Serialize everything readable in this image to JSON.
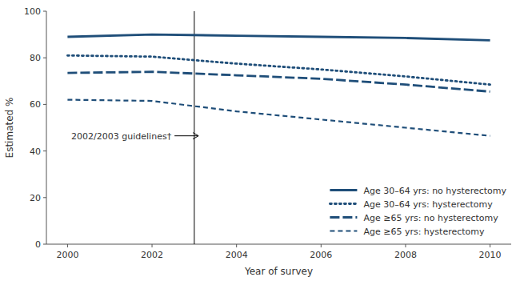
{
  "chart_data": {
    "type": "line",
    "x": [
      2000,
      2002,
      2004,
      2006,
      2008,
      2010
    ],
    "series": [
      {
        "name": "Age 30–64 yrs: no hysterectomy",
        "color": "#1F4E79",
        "line_style": "solid",
        "values": [
          89.0,
          90.0,
          89.5,
          89.0,
          88.5,
          87.5
        ]
      },
      {
        "name": "Age 30–64 yrs: hysterectomy",
        "color": "#1F4E79",
        "line_style": "dotted",
        "values": [
          81.0,
          80.5,
          77.5,
          75.0,
          72.0,
          68.5
        ]
      },
      {
        "name": "Age ≥65 yrs: no hysterectomy",
        "color": "#1F4E79",
        "line_style": "dashed",
        "values": [
          73.5,
          74.0,
          72.5,
          71.0,
          68.5,
          65.5
        ]
      },
      {
        "name": "Age ≥65 yrs: hysterectomy",
        "color": "#1F4E79",
        "line_style": "shortdashed",
        "values": [
          62.0,
          61.5,
          57.0,
          53.5,
          50.0,
          46.5
        ]
      }
    ],
    "vlines": [
      2003
    ],
    "annotations": [
      {
        "text": "2002/2003 guidelines†",
        "x": 2003.1,
        "y": 46.5
      }
    ],
    "xlabel": "Year of survey",
    "ylabel": "Estimated %",
    "xlim": [
      1999.5,
      2010.5
    ],
    "ylim": [
      0,
      100
    ],
    "xticks": [
      2000,
      2002,
      2004,
      2006,
      2008,
      2010
    ],
    "yticks": [
      0,
      20,
      40,
      60,
      80,
      100
    ],
    "grid": false,
    "legend": "lower right"
  }
}
